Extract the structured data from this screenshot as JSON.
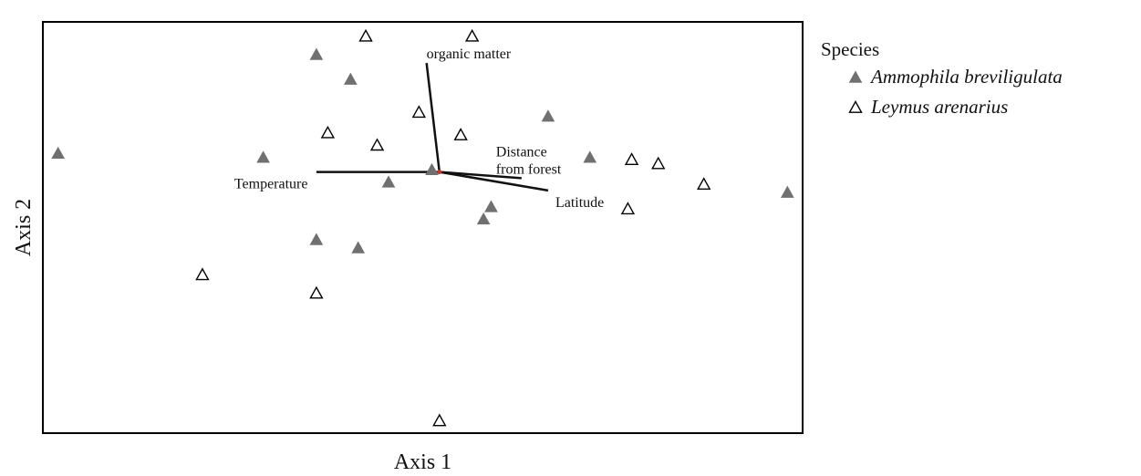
{
  "chart_data": {
    "type": "scatter",
    "title": "",
    "xlabel": "Axis 1",
    "ylabel": "Axis 2",
    "xlim": [
      0,
      100
    ],
    "ylim": [
      0,
      100
    ],
    "grid": false,
    "legend_placement": "right",
    "legend_title": "Species",
    "series": [
      {
        "name": "Ammophila breviligulata",
        "marker": "filled-triangle",
        "color": "#707070",
        "points": [
          {
            "x": 2,
            "y": 68
          },
          {
            "x": 36,
            "y": 92
          },
          {
            "x": 40.5,
            "y": 86
          },
          {
            "x": 29,
            "y": 67
          },
          {
            "x": 51.2,
            "y": 64
          },
          {
            "x": 45.5,
            "y": 61
          },
          {
            "x": 66.5,
            "y": 77
          },
          {
            "x": 72,
            "y": 67
          },
          {
            "x": 98,
            "y": 58.5
          },
          {
            "x": 59,
            "y": 55
          },
          {
            "x": 58,
            "y": 52
          },
          {
            "x": 36,
            "y": 47
          },
          {
            "x": 41.5,
            "y": 45
          }
        ]
      },
      {
        "name": "Leymus arenarius",
        "marker": "open-triangle",
        "color": "#000000",
        "points": [
          {
            "x": 42.5,
            "y": 96.5
          },
          {
            "x": 56.5,
            "y": 96.5
          },
          {
            "x": 49.5,
            "y": 78
          },
          {
            "x": 37.5,
            "y": 73
          },
          {
            "x": 44,
            "y": 70
          },
          {
            "x": 55,
            "y": 72.5
          },
          {
            "x": 77.5,
            "y": 66.5
          },
          {
            "x": 81,
            "y": 65.5
          },
          {
            "x": 87,
            "y": 60.5
          },
          {
            "x": 77,
            "y": 54.5
          },
          {
            "x": 21,
            "y": 38.5
          },
          {
            "x": 36,
            "y": 34
          },
          {
            "x": 52.2,
            "y": 3
          }
        ]
      }
    ],
    "vectors": [
      {
        "label": "organic matter",
        "x": 50.5,
        "y": 90
      },
      {
        "label": "Temperature",
        "x": 36,
        "y": 63.5
      },
      {
        "label": "Distance\nfrom forest",
        "x": 63,
        "y": 62
      },
      {
        "label": "Latitude",
        "x": 66.5,
        "y": 59
      }
    ],
    "vector_origin": {
      "x": 52.2,
      "y": 63.5
    }
  }
}
